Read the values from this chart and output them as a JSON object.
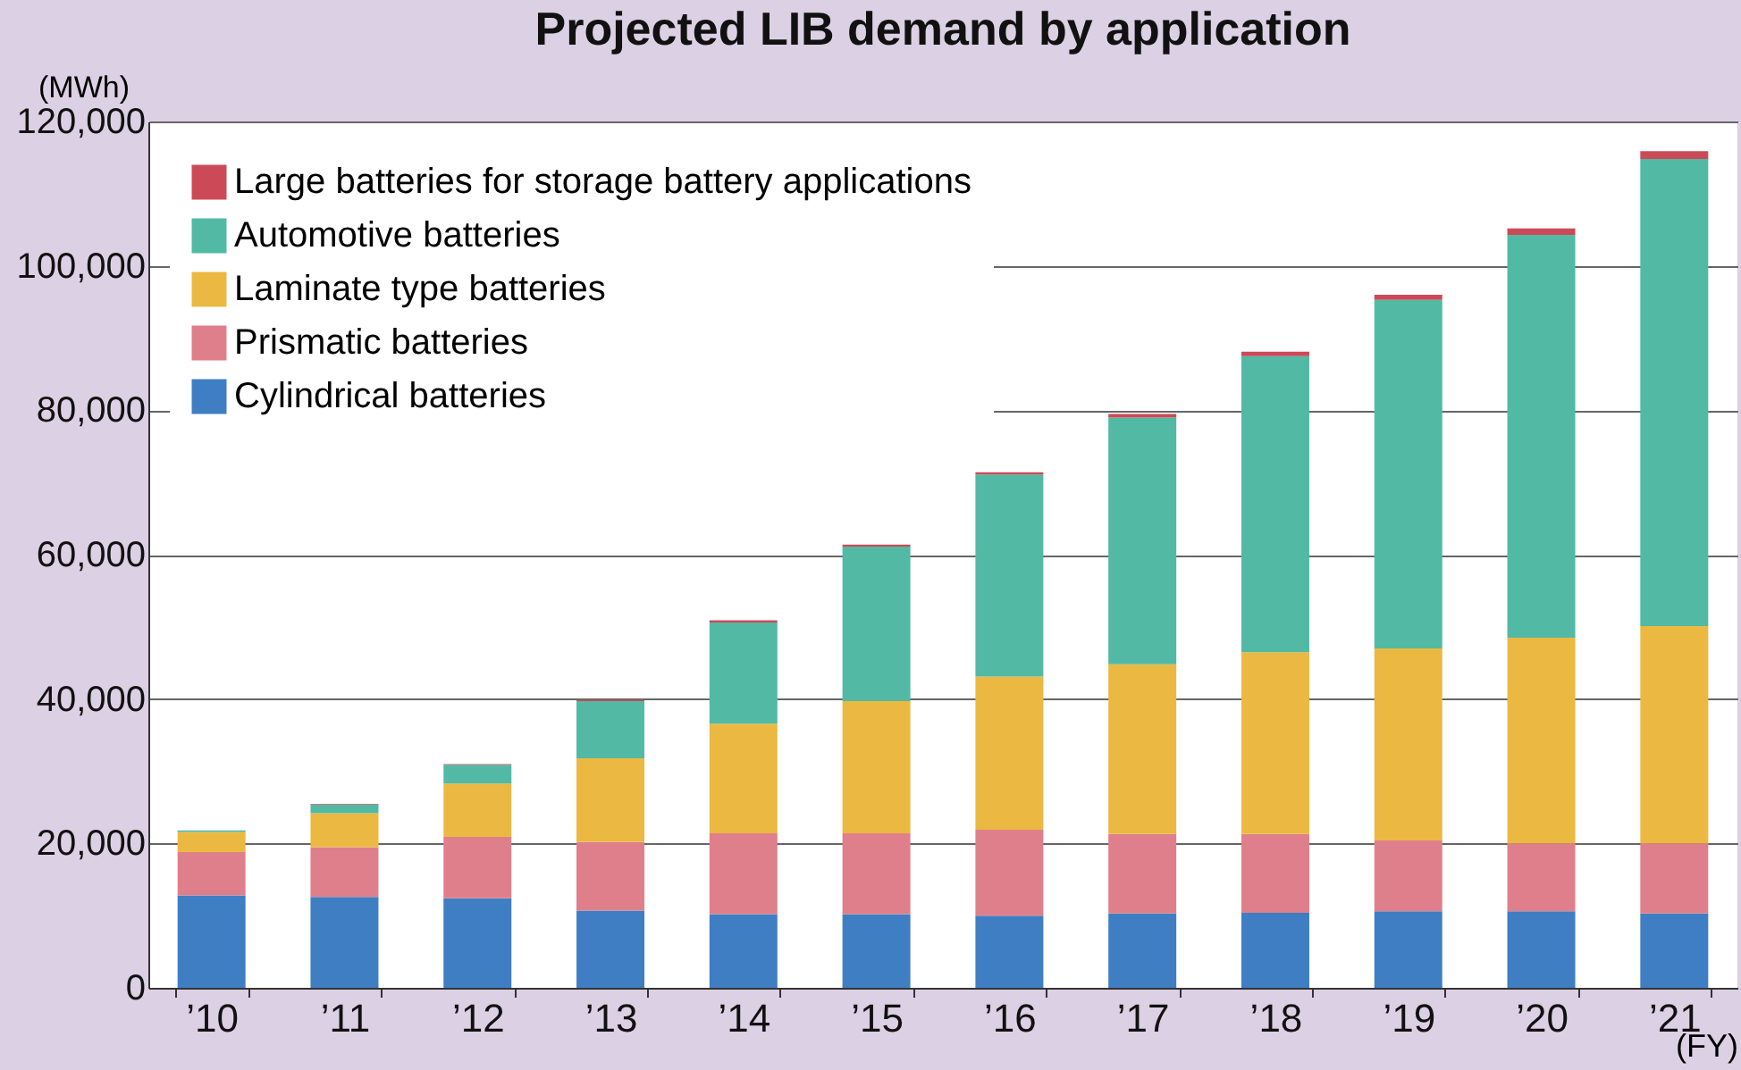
{
  "chart_data": {
    "type": "bar",
    "title": "Projected LIB demand by application",
    "ylabel": "(MWh)",
    "xlabel": "(FY)",
    "categories": [
      "’10",
      "’11",
      "’12",
      "’13",
      "’14",
      "’15",
      "’16",
      "’17",
      "’18",
      "’19",
      "’20",
      "’21"
    ],
    "stacked": true,
    "ylim": [
      0,
      120000
    ],
    "yticks": [
      0,
      {
        "value": 20000,
        "label": "20,000"
      },
      {
        "value": 40000,
        "label": "40,000"
      },
      {
        "value": 60000,
        "label": "60,000"
      },
      {
        "value": 80000,
        "label": "80,000"
      },
      {
        "value": 100000,
        "label": "100,000"
      },
      {
        "value": 120000,
        "label": "120,000"
      }
    ],
    "grid": "y",
    "legend": "top left",
    "series": [
      {
        "name": "Cylindrical batteries",
        "color": "#3f7ec3",
        "values": [
          12800,
          12600,
          12400,
          10700,
          10200,
          10200,
          10000,
          10300,
          10400,
          10600,
          10600,
          10300
        ]
      },
      {
        "name": "Prismatic batteries",
        "color": "#e07f8c",
        "values": [
          6000,
          6900,
          8500,
          9500,
          11200,
          11200,
          11900,
          11000,
          10900,
          9800,
          9400,
          9700
        ]
      },
      {
        "name": "Laminate type batteries",
        "color": "#ebb942",
        "values": [
          2800,
          4700,
          7400,
          11600,
          15200,
          18300,
          21200,
          23500,
          25200,
          26600,
          28500,
          30100
        ]
      },
      {
        "name": "Automotive batteries",
        "color": "#52b9a5",
        "values": [
          200,
          1200,
          2600,
          7900,
          14000,
          21400,
          28000,
          34200,
          41000,
          48300,
          55800,
          64700
        ]
      },
      {
        "name": "Large batteries for storage battery applications",
        "color": "#cc4a57",
        "values": [
          0,
          100,
          100,
          200,
          300,
          300,
          300,
          500,
          600,
          700,
          900,
          1100
        ]
      }
    ]
  }
}
